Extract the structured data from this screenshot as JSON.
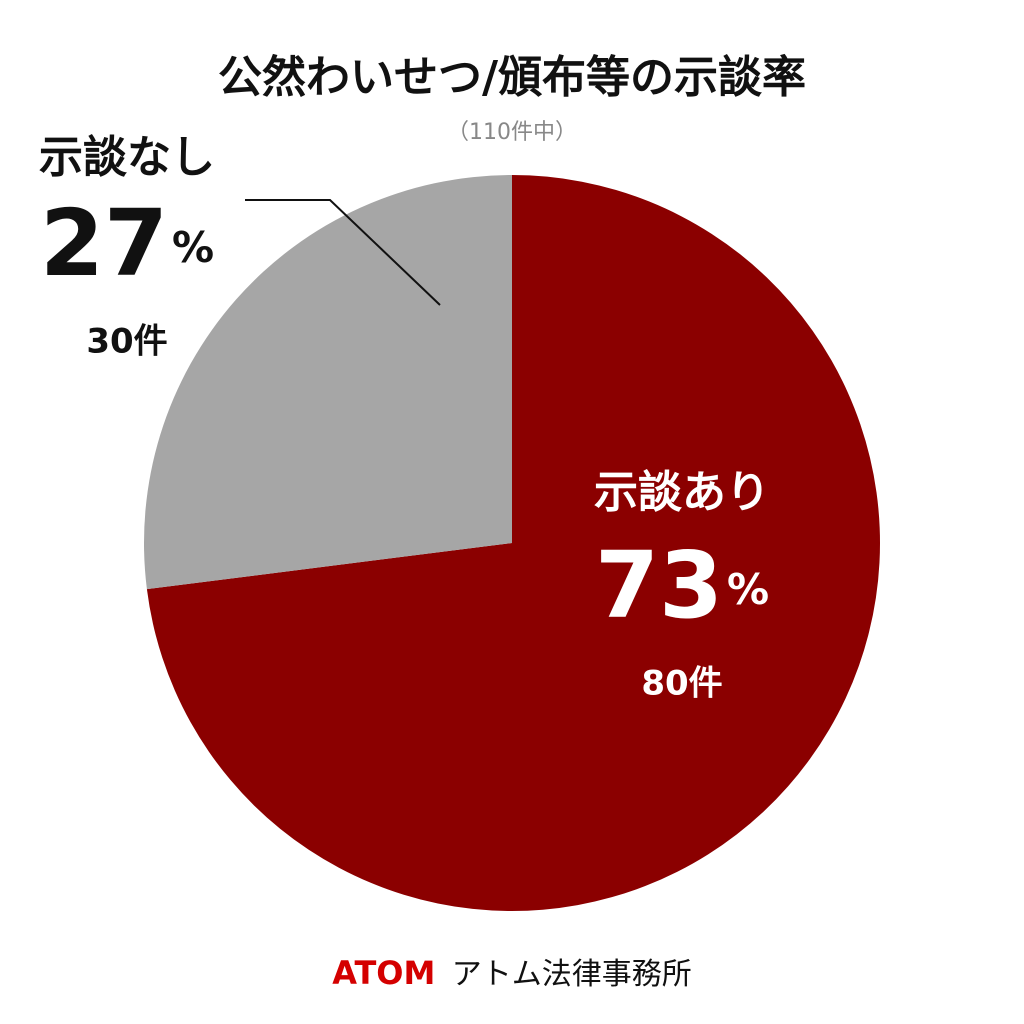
{
  "chart_data": {
    "type": "pie",
    "title": "公然わいせつ/頒布等の示談率",
    "subtitle": "（110件中）",
    "categories": [
      "示談あり",
      "示談なし"
    ],
    "values": [
      73,
      27
    ],
    "unit": "%",
    "counts": [
      80,
      30
    ],
    "count_labels": [
      "80件",
      "30件"
    ],
    "colors": [
      "#8b0000",
      "#a6a6a6"
    ],
    "footer": {
      "brand": "ATOM",
      "name": "アトム法律事務所"
    }
  }
}
